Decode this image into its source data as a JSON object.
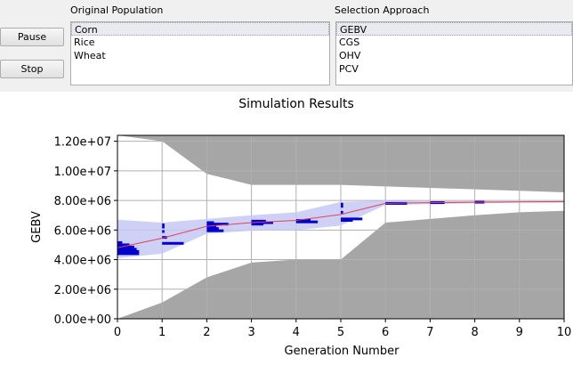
{
  "controls": {
    "pause_label": "Pause",
    "stop_label": "Stop"
  },
  "population": {
    "label": "Original Population",
    "items": [
      "Corn",
      "Rice",
      "Wheat"
    ],
    "selected_index": 0
  },
  "selection": {
    "label": "Selection Approach",
    "items": [
      "GEBV",
      "CGS",
      "OHV",
      "PCV"
    ],
    "selected_index": 0
  },
  "colors": {
    "envelope": "#a6a6a6",
    "band": "#c5c8f4",
    "mean_line": "#e0405a",
    "histogram": "#0000cc",
    "grid": "#b0b0b0"
  },
  "chart_data": {
    "type": "area",
    "title": "Simulation Results",
    "xlabel": "Generation Number",
    "ylabel": "GEBV",
    "xlim": [
      0,
      10
    ],
    "ylim": [
      0,
      12400000
    ],
    "xticks": [
      0,
      1,
      2,
      3,
      4,
      5,
      6,
      7,
      8,
      9,
      10
    ],
    "yticks": [
      0,
      2000000,
      4000000,
      6000000,
      8000000,
      10000000,
      12000000
    ],
    "ytick_labels": [
      "0.00e+00",
      "2.00e+06",
      "4.00e+06",
      "6.00e+06",
      "8.00e+06",
      "1.00e+07",
      "1.20e+07"
    ],
    "grid": true,
    "series": [
      {
        "values_x": [
          0,
          1,
          2,
          3,
          4,
          5,
          6,
          7,
          8,
          9,
          10
        ],
        "upper": [
          12400000,
          12000000,
          9800000,
          9050000,
          9050000,
          9050000,
          8950000,
          8850000,
          8750000,
          8650000,
          8550000
        ],
        "lower": [
          0,
          1100000,
          2800000,
          3800000,
          4000000,
          4000000,
          6500000,
          6750000,
          7000000,
          7200000,
          7300000
        ]
      },
      {
        "values_x": [
          0,
          1,
          2,
          3,
          4,
          5,
          6,
          7,
          8,
          9,
          10
        ],
        "upper": [
          6700000,
          6500000,
          6750000,
          7000000,
          7200000,
          7900000,
          8000000,
          7950000,
          7950000,
          7950000,
          7950000
        ],
        "lower": [
          4100000,
          4400000,
          5750000,
          5950000,
          6000000,
          6300000,
          7700000,
          7750000,
          7800000,
          7850000,
          7850000
        ]
      },
      {
        "values_x": [
          0,
          1,
          2,
          3,
          4,
          5,
          6,
          7,
          8,
          9,
          10
        ],
        "values": [
          4800000,
          5450000,
          6250000,
          6500000,
          6650000,
          7050000,
          7800000,
          7850000,
          7880000,
          7900000,
          7920000
        ]
      }
    ],
    "histograms": [
      {
        "gen": 0,
        "y": [
          4400000,
          4550000,
          4700000,
          4850000,
          5000000,
          5150000
        ],
        "counts": [
          9,
          9,
          8,
          7,
          5,
          2
        ]
      },
      {
        "gen": 1,
        "y": [
          5100000,
          5500000,
          5900000,
          6200000,
          6350000
        ],
        "counts": [
          9,
          2,
          1,
          1,
          1
        ]
      },
      {
        "gen": 2,
        "y": [
          5950000,
          6100000,
          6250000,
          6400000,
          6500000
        ],
        "counts": [
          7,
          5,
          4,
          9,
          3
        ]
      },
      {
        "gen": 3,
        "y": [
          6400000,
          6500000,
          6600000
        ],
        "counts": [
          5,
          9,
          6
        ]
      },
      {
        "gen": 4,
        "y": [
          6550000,
          6650000
        ],
        "counts": [
          9,
          6
        ]
      },
      {
        "gen": 5,
        "y": [
          6650000,
          6750000,
          7200000,
          7600000,
          7750000
        ],
        "counts": [
          5,
          9,
          1,
          1,
          1
        ]
      },
      {
        "gen": 6,
        "y": [
          7800000
        ],
        "counts": [
          9
        ]
      },
      {
        "gen": 7,
        "y": [
          7850000
        ],
        "counts": [
          6
        ]
      },
      {
        "gen": 8,
        "y": [
          7880000
        ],
        "counts": [
          4
        ]
      }
    ]
  }
}
